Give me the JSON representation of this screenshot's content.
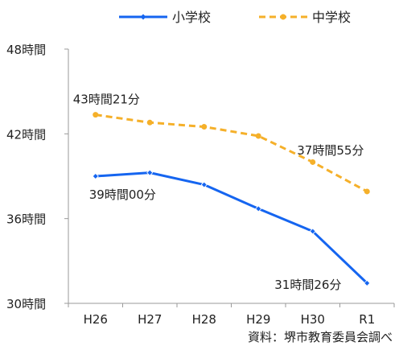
{
  "chart_data": {
    "type": "line",
    "categories": [
      "H26",
      "H27",
      "H28",
      "H29",
      "H30",
      "R1"
    ],
    "y_ticks": [
      "30時間",
      "36時間",
      "42時間",
      "48時間"
    ],
    "ylim": [
      30,
      48
    ],
    "grid": false,
    "legend_position": "top",
    "series": [
      {
        "name": "小学校",
        "color": "#1565f0",
        "style": "solid",
        "values": [
          39.0,
          39.25,
          38.4,
          36.7,
          35.1,
          31.43
        ]
      },
      {
        "name": "中学校",
        "color": "#f5b02a",
        "style": "dashed",
        "values": [
          43.35,
          42.8,
          42.5,
          41.85,
          40.0,
          37.92
        ]
      }
    ],
    "annotations": [
      {
        "id": "a1",
        "text": "43時間21分",
        "series": 1,
        "index": 0
      },
      {
        "id": "a2",
        "text": "37時間55分",
        "series": 1,
        "index": 5
      },
      {
        "id": "a3",
        "text": "39時間00分",
        "series": 0,
        "index": 0
      },
      {
        "id": "a4",
        "text": "31時間26分",
        "series": 0,
        "index": 5
      }
    ],
    "source_note": "資料：堺市教育委員会調べ"
  }
}
